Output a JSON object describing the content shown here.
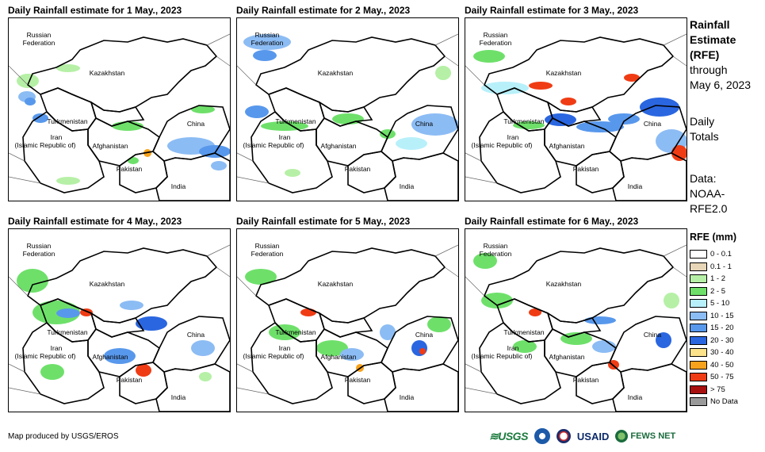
{
  "panels": [
    {
      "title": "Daily Rainfall estimate for 1 May., 2023"
    },
    {
      "title": "Daily Rainfall estimate for 2 May., 2023"
    },
    {
      "title": "Daily Rainfall estimate for 3 May., 2023"
    },
    {
      "title": "Daily Rainfall estimate for 4 May., 2023"
    },
    {
      "title": "Daily Rainfall estimate for 5 May., 2023"
    },
    {
      "title": "Daily Rainfall estimate for 6 May., 2023"
    }
  ],
  "country_labels": {
    "russia_1": "Russian",
    "russia_2": "Federation",
    "kazakhstan": "Kazakhstan",
    "turkmenistan": "Turkmenistan",
    "iran_1": "Iran",
    "iran_2": "(Islamic Republic of)",
    "afghanistan": "Afghanistan",
    "pakistan": "Pakistan",
    "china": "China",
    "india": "India"
  },
  "sidebar": {
    "heading_1": "Rainfall",
    "heading_2": "Estimate",
    "heading_3": "(RFE)",
    "through": "through",
    "date": "May 6, 2023",
    "daily": "Daily",
    "totals": "Totals",
    "data_label": "Data:",
    "data_src_1": "NOAA-",
    "data_src_2": "RFE2.0"
  },
  "legend": {
    "title": "RFE (mm)",
    "items": [
      {
        "label": "0 - 0.1",
        "color": "#ffffff"
      },
      {
        "label": "0.1 - 1",
        "color": "#e8d6b8"
      },
      {
        "label": "1 - 2",
        "color": "#b6f0a6"
      },
      {
        "label": "2 - 5",
        "color": "#6ee06a"
      },
      {
        "label": "5 - 10",
        "color": "#b8f0fa"
      },
      {
        "label": "10 - 15",
        "color": "#8cbcf4"
      },
      {
        "label": "15 - 20",
        "color": "#5898ec"
      },
      {
        "label": "20 - 30",
        "color": "#2a66e0"
      },
      {
        "label": "30 - 40",
        "color": "#fce28a"
      },
      {
        "label": "40 - 50",
        "color": "#f7a21c"
      },
      {
        "label": "50 - 75",
        "color": "#f03c14"
      },
      {
        "label": "> 75",
        "color": "#a81010"
      },
      {
        "label": "No Data",
        "color": "#9a9a9a"
      }
    ]
  },
  "footer": {
    "text": "Map produced by USGS/EROS"
  },
  "logos": {
    "usgs": "≋USGS",
    "usaid": "USAID",
    "fews": "FEWS NET"
  }
}
